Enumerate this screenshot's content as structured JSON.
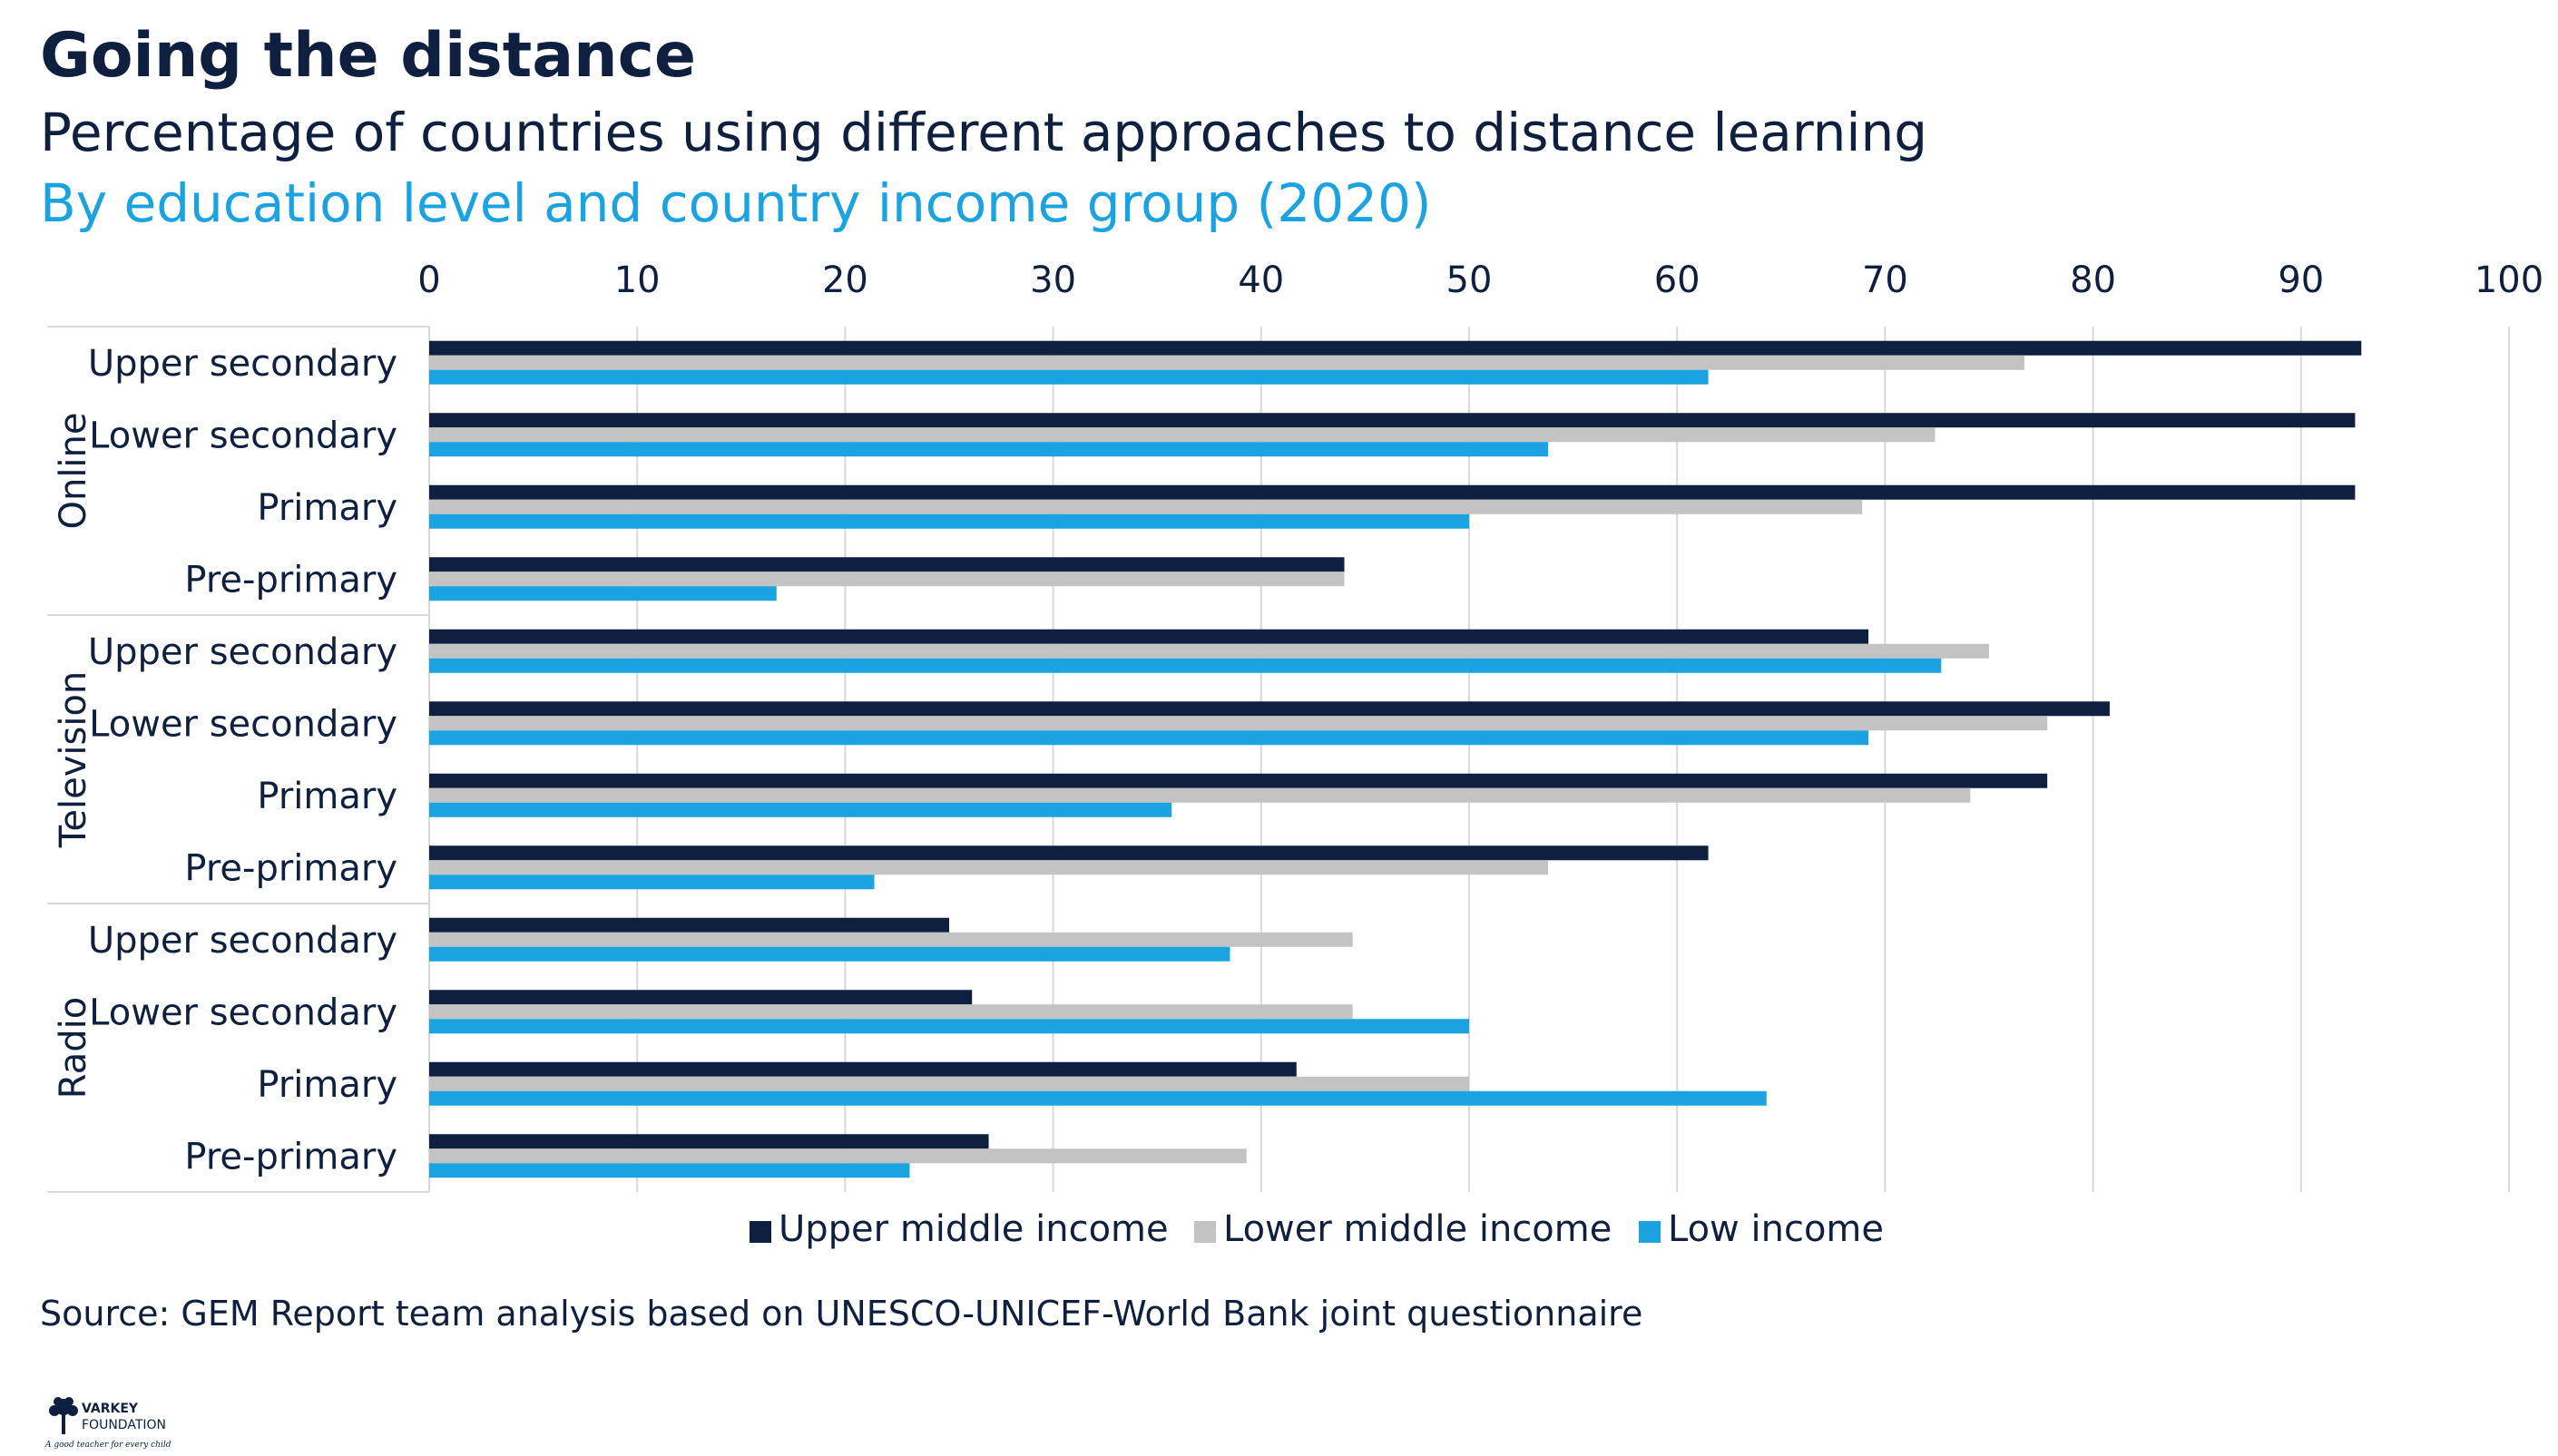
{
  "header": {
    "title": "Going the distance",
    "subtitle": "Percentage of countries using different approaches to distance learning",
    "subtitle2": "By education level and country income group (2020)"
  },
  "footer": {
    "source": "Source: GEM Report team analysis based on UNESCO-UNICEF-World Bank joint questionnaire",
    "logo_line1": "VARKEY",
    "logo_line2": "FOUNDATION",
    "logo_tagline": "A good teacher for every child"
  },
  "colors": {
    "upper_middle": "#0e1f40",
    "lower_middle": "#c3c3c3",
    "low": "#1aa3e0"
  },
  "chart_data": {
    "type": "bar",
    "orientation": "horizontal",
    "title": "Going the distance",
    "xlim": [
      0,
      100
    ],
    "x_ticks": [
      0,
      10,
      20,
      30,
      40,
      50,
      60,
      70,
      80,
      90,
      100
    ],
    "x_axis_position": "top",
    "grid": true,
    "legend_position": "bottom",
    "groups": [
      {
        "name": "Online",
        "categories": [
          "Upper secondary",
          "Lower secondary",
          "Primary",
          "Pre-primary"
        ]
      },
      {
        "name": "Television",
        "categories": [
          "Upper secondary",
          "Lower secondary",
          "Primary",
          "Pre-primary"
        ]
      },
      {
        "name": "Radio",
        "categories": [
          "Upper secondary",
          "Lower secondary",
          "Primary",
          "Pre-primary"
        ]
      }
    ],
    "series": [
      {
        "name": "Upper middle income",
        "color": "#0e1f40",
        "values": [
          92.9,
          92.6,
          92.6,
          44.0,
          69.2,
          80.8,
          77.8,
          61.5,
          25.0,
          26.1,
          41.7,
          26.9
        ]
      },
      {
        "name": "Lower middle income",
        "color": "#c3c3c3",
        "values": [
          76.7,
          72.4,
          68.9,
          44.0,
          75.0,
          77.8,
          74.1,
          53.8,
          44.4,
          44.4,
          50.0,
          39.3
        ]
      },
      {
        "name": "Low income",
        "color": "#1aa3e0",
        "values": [
          61.5,
          53.8,
          50.0,
          16.7,
          72.7,
          69.2,
          35.7,
          21.4,
          38.5,
          50.0,
          64.3,
          23.1
        ]
      }
    ]
  }
}
